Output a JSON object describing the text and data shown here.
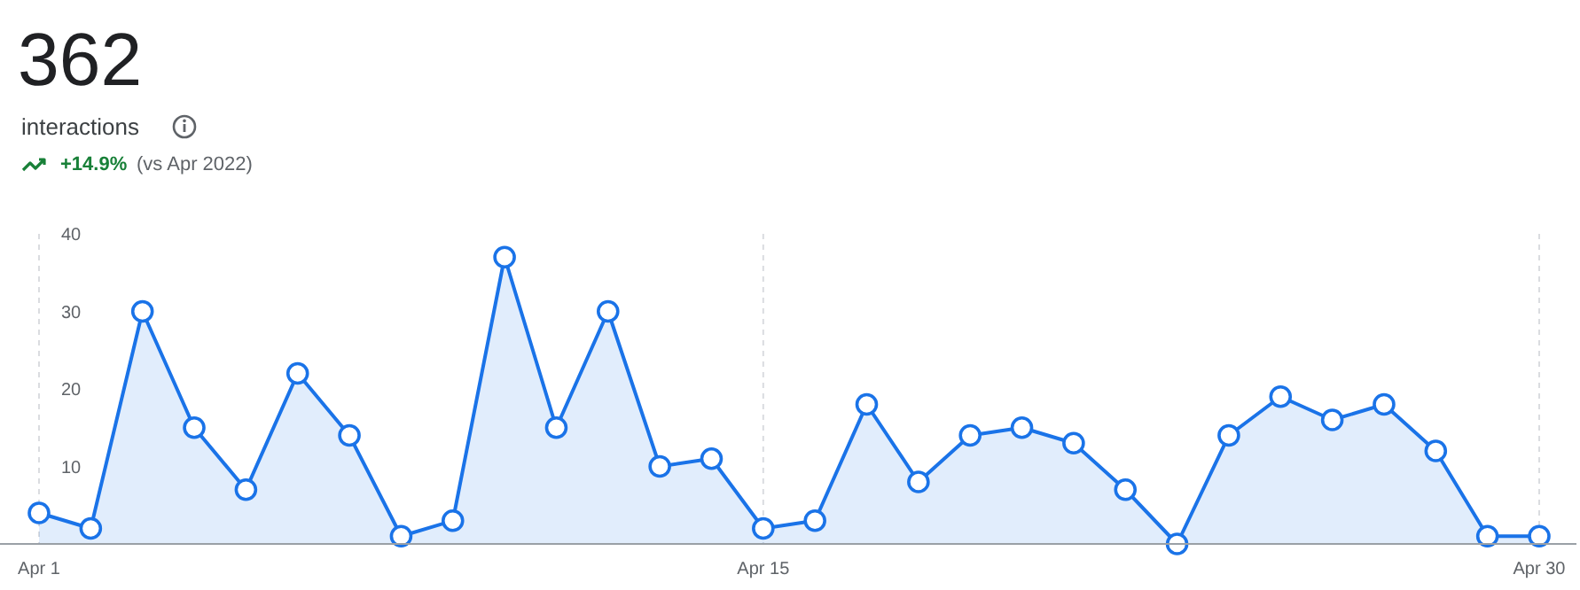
{
  "chart_data": {
    "type": "area",
    "title": "362",
    "subtitle": "interactions",
    "annotations": [
      "+14.9%",
      "(vs Apr 2022)"
    ],
    "categories": [
      "Apr 1",
      null,
      null,
      null,
      null,
      null,
      null,
      null,
      null,
      null,
      null,
      null,
      null,
      null,
      "Apr 15",
      null,
      null,
      null,
      null,
      null,
      null,
      null,
      null,
      null,
      null,
      null,
      null,
      null,
      null,
      "Apr 30"
    ],
    "series": [
      {
        "color": "#1a73e8",
        "values": [
          4,
          2,
          30,
          15,
          7,
          22,
          14,
          1,
          3,
          37,
          15,
          30,
          10,
          11,
          2,
          3,
          18,
          8,
          14,
          15,
          13,
          7,
          0,
          14,
          19,
          16,
          18,
          12,
          1,
          1
        ]
      }
    ],
    "ylim": [
      0,
      40
    ],
    "yticks": [
      10,
      20,
      30,
      40
    ],
    "grid": "x",
    "marker": "circle"
  }
}
